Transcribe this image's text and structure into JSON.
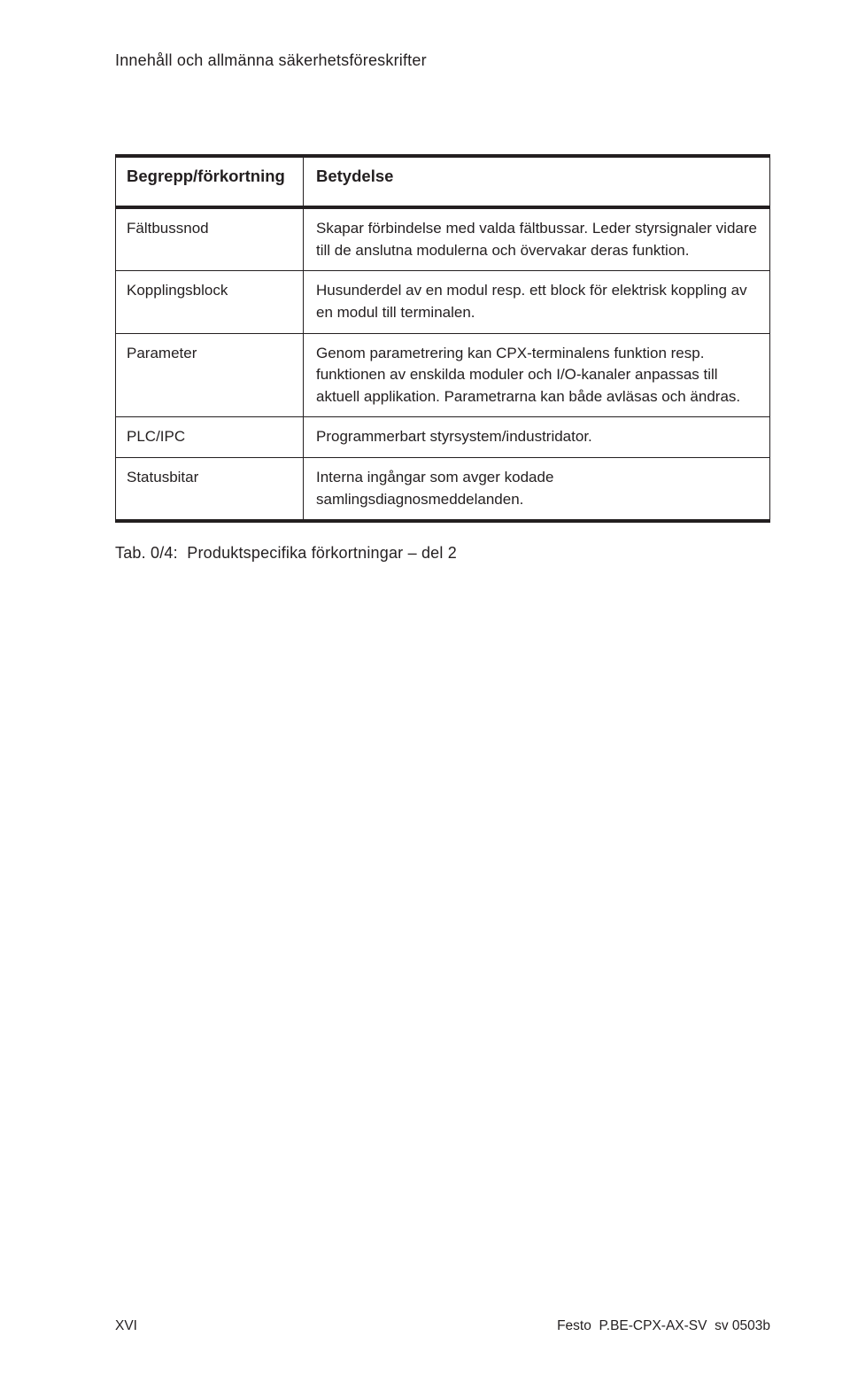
{
  "colors": {
    "text": "#231f20",
    "rule": "#231f20",
    "background": "#ffffff"
  },
  "running_header": "Innehåll och allmänna säkerhetsföreskrifter",
  "table": {
    "header": {
      "col1": "Begrepp/förkortning",
      "col2": "Betydelse"
    },
    "rows": [
      {
        "term": "Fältbussnod",
        "definition": "Skapar förbindelse med valda fältbussar. Leder styrsignaler vidare till de anslutna modulerna och övervakar deras funktion."
      },
      {
        "term": "Kopplingsblock",
        "definition": "Husunderdel av en modul resp. ett block för elektrisk koppling av en modul till terminalen."
      },
      {
        "term": "Parameter",
        "definition": "Genom parametrering kan CPX-terminalens funktion resp. funktionen av enskilda moduler och I/O-kanaler anpassas till aktuell applikation. Parametrarna kan både avläsas och ändras."
      },
      {
        "term": "PLC/IPC",
        "definition": "Programmerbart styrsystem/industridator."
      },
      {
        "term": "Statusbitar",
        "definition": "Interna ingångar som avger kodade samlingsdiagnosmeddelanden."
      }
    ]
  },
  "caption": "Tab. 0/4:  Produktspecifika förkortningar – del 2",
  "footer": {
    "page": "XVI",
    "docid": "Festo  P.BE-CPX-AX-SV  sv 0503b"
  }
}
